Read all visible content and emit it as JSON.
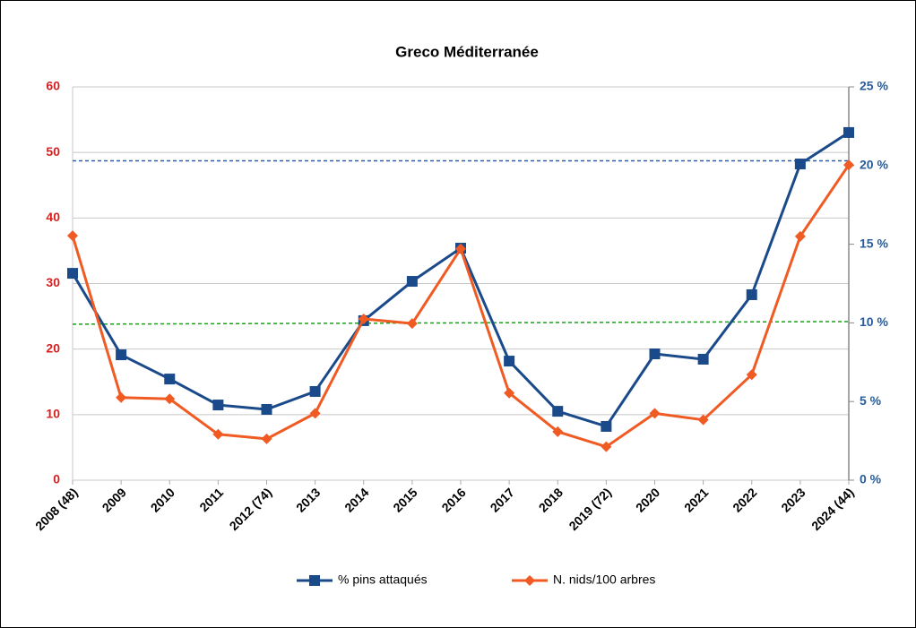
{
  "chart_data": {
    "type": "line",
    "title": "Greco Méditerranée",
    "categories": [
      "2008 (48)",
      "2009",
      "2010",
      "2011",
      "2012 (74)",
      "2013",
      "2014",
      "2015",
      "2016",
      "2017",
      "2018",
      "2019 (72)",
      "2020",
      "2021",
      "2022",
      "2023",
      "2024 (44)"
    ],
    "series": [
      {
        "name": "% pins attaqués",
        "color": "#1a4a8a",
        "marker": "square",
        "axis": "y2",
        "values": [
          13.15,
          7.97,
          6.43,
          4.78,
          4.5,
          5.64,
          10.14,
          12.64,
          14.75,
          7.57,
          4.38,
          3.42,
          8.03,
          7.69,
          11.79,
          20.1,
          22.1
        ]
      },
      {
        "name": "N. nids/100 arbres",
        "color": "#f05a23",
        "marker": "diamond",
        "axis": "y",
        "values": [
          37.3,
          12.6,
          12.4,
          7.0,
          6.3,
          10.2,
          24.6,
          23.9,
          35.3,
          13.3,
          7.4,
          5.1,
          10.2,
          9.2,
          16.1,
          37.2,
          48.1
        ]
      }
    ],
    "reference_lines": [
      {
        "color": "#2a5ca8",
        "axis": "y2",
        "values": [
          20.3,
          20.3
        ]
      },
      {
        "color": "#1aa01a",
        "axis": "y",
        "values": [
          23.8,
          24.2
        ]
      }
    ],
    "ylim": [
      0,
      60
    ],
    "yticks": [
      0,
      10,
      20,
      30,
      40,
      50,
      60
    ],
    "ytick_color": "#d62020",
    "y2lim": [
      0,
      25
    ],
    "y2ticks": [
      {
        "value": 0,
        "label": "0 %"
      },
      {
        "value": 5,
        "label": "5 %"
      },
      {
        "value": 10,
        "label": "10 %"
      },
      {
        "value": 15,
        "label": "15 %"
      },
      {
        "value": 20,
        "label": "20 %"
      },
      {
        "value": 25,
        "label": "25 %"
      }
    ],
    "y2tick_color": "#2a5c98",
    "grid": true,
    "legend": "bottom"
  }
}
